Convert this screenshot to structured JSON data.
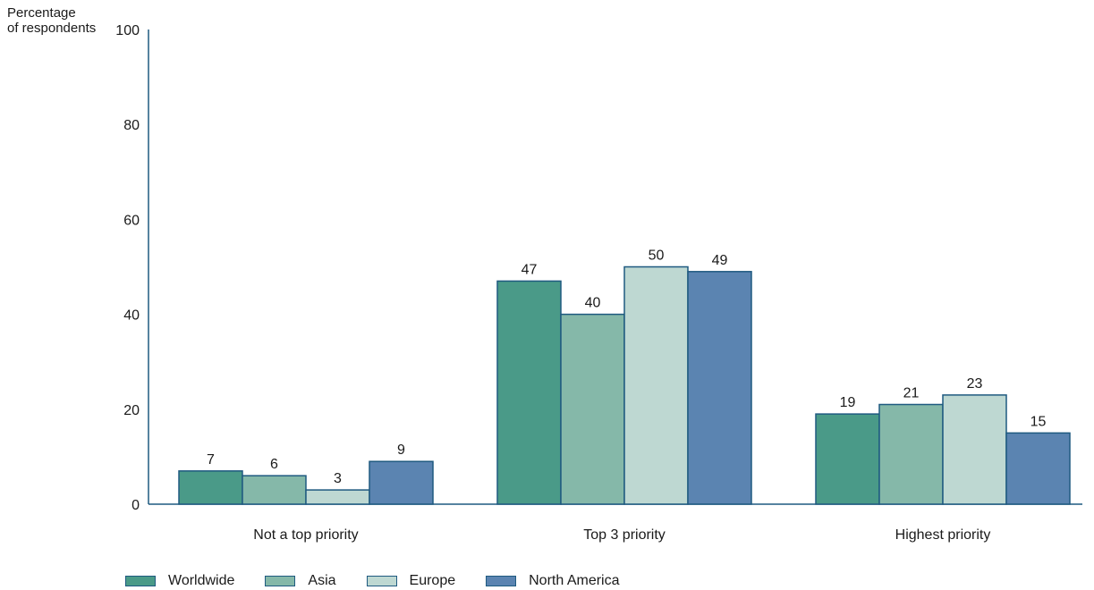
{
  "chart_data": {
    "type": "bar",
    "ylabel": [
      "Percentage",
      "of respondents"
    ],
    "ylim": [
      0,
      100
    ],
    "yticks": [
      0,
      20,
      40,
      60,
      80,
      100
    ],
    "categories": [
      "Not a top priority",
      "Top 3 priority",
      "Highest priority"
    ],
    "series": [
      {
        "name": "Worldwide",
        "color": "#4a9a88",
        "values": [
          7,
          47,
          19
        ]
      },
      {
        "name": "Asia",
        "color": "#85b8a9",
        "values": [
          6,
          40,
          21
        ]
      },
      {
        "name": "Europe",
        "color": "#bed8d2",
        "values": [
          3,
          50,
          23
        ]
      },
      {
        "name": "North America",
        "color": "#5b84b1",
        "values": [
          9,
          49,
          15
        ]
      }
    ],
    "bar_outline": "#1f5a80",
    "grid": false,
    "legend_position": "bottom-left"
  }
}
